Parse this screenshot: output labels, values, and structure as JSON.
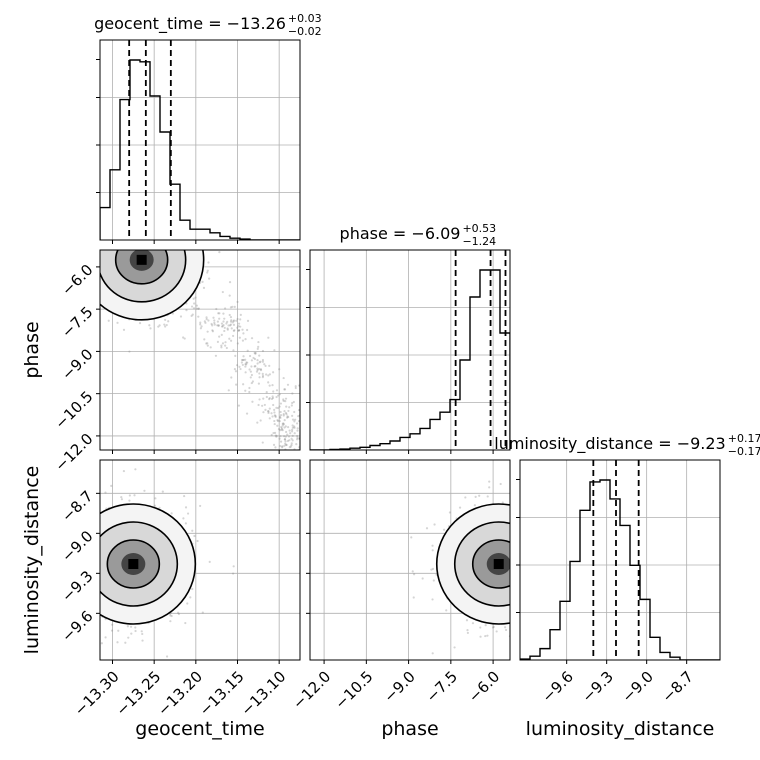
{
  "chart_data": {
    "type": "corner",
    "grid": true,
    "params": [
      {
        "key": "geocent_time",
        "label": "geocent_time",
        "range": [
          -13.315,
          -13.075
        ],
        "ticks": [
          -13.3,
          -13.25,
          -13.2,
          -13.15,
          -13.1
        ],
        "tick_labels": [
          "−13.30",
          "−13.25",
          "−13.20",
          "−13.15",
          "−13.10"
        ],
        "quantiles": [
          -13.28,
          -13.26,
          -13.23
        ],
        "title": {
          "main": "geocent_time = −13.26",
          "upper": "+0.03",
          "lower": "−0.02"
        },
        "hist": {
          "edges": [
            -13.315,
            -13.303,
            -13.291,
            -13.279,
            -13.267,
            -13.255,
            -13.243,
            -13.231,
            -13.219,
            -13.207,
            -13.195,
            -13.183,
            -13.171,
            -13.159,
            -13.147,
            -13.135,
            -13.123,
            -13.111,
            -13.099,
            -13.087,
            -13.075
          ],
          "counts": [
            0.18,
            0.39,
            0.78,
            1.0,
            0.99,
            0.8,
            0.6,
            0.31,
            0.11,
            0.06,
            0.06,
            0.04,
            0.02,
            0.01,
            0.005,
            0,
            0,
            0,
            0,
            0
          ]
        }
      },
      {
        "key": "phase",
        "label": "phase",
        "range": [
          -12.5,
          -5.4
        ],
        "ticks": [
          -12.0,
          -10.5,
          -9.0,
          -7.5,
          -6.0
        ],
        "tick_labels": [
          "−12.0",
          "−10.5",
          "−9.0",
          "−7.5",
          "−6.0"
        ],
        "quantiles": [
          -7.33,
          -6.09,
          -5.56
        ],
        "title": {
          "main": "phase = −6.09",
          "upper": "+0.53",
          "lower": "−1.24"
        },
        "hist": {
          "edges": [
            -12.5,
            -12.145,
            -11.79,
            -11.435,
            -11.08,
            -10.725,
            -10.37,
            -10.015,
            -9.66,
            -9.305,
            -8.95,
            -8.595,
            -8.24,
            -7.885,
            -7.53,
            -7.175,
            -6.82,
            -6.465,
            -6.11,
            -5.755,
            -5.4
          ],
          "counts": [
            0,
            0,
            0.003,
            0.005,
            0.01,
            0.015,
            0.025,
            0.035,
            0.05,
            0.07,
            0.09,
            0.12,
            0.17,
            0.21,
            0.28,
            0.5,
            0.85,
            1.0,
            1.0,
            0.65
          ]
        }
      },
      {
        "key": "luminosity_distance",
        "label": "luminosity_distance",
        "range": [
          -9.95,
          -8.45
        ],
        "ticks": [
          -9.6,
          -9.3,
          -9.0,
          -8.7
        ],
        "tick_labels": [
          "−9.6",
          "−9.3",
          "−9.0",
          "−8.7"
        ],
        "quantiles": [
          -9.4,
          -9.23,
          -9.06
        ],
        "title": {
          "main": "luminosity_distance = −9.23",
          "upper": "+0.17",
          "lower": "−0.17"
        },
        "hist": {
          "edges": [
            -9.95,
            -9.875,
            -9.8,
            -9.725,
            -9.65,
            -9.575,
            -9.5,
            -9.425,
            -9.35,
            -9.275,
            -9.2,
            -9.125,
            -9.05,
            -8.975,
            -8.9,
            -8.825,
            -8.75,
            -8.675,
            -8.6,
            -8.525,
            -8.45
          ],
          "counts": [
            0.005,
            0.02,
            0.06,
            0.16,
            0.31,
            0.52,
            0.79,
            0.94,
            0.95,
            0.85,
            0.71,
            0.5,
            0.32,
            0.12,
            0.04,
            0.015,
            0,
            0,
            0,
            0
          ]
        }
      }
    ],
    "scatter_2d": [
      {
        "x": "geocent_time",
        "y": "phase",
        "center": [
          -13.265,
          -5.75
        ],
        "ridge_points": [
          [
            -13.23,
            -7.0
          ],
          [
            -13.17,
            -8.0
          ],
          [
            -13.13,
            -9.5
          ],
          [
            -13.1,
            -11.0
          ],
          [
            -13.09,
            -12.0
          ]
        ]
      },
      {
        "x": "geocent_time",
        "y": "luminosity_distance",
        "center": [
          -13.275,
          -9.23
        ]
      },
      {
        "x": "phase",
        "y": "luminosity_distance",
        "center": [
          -5.8,
          -9.23
        ]
      }
    ]
  }
}
